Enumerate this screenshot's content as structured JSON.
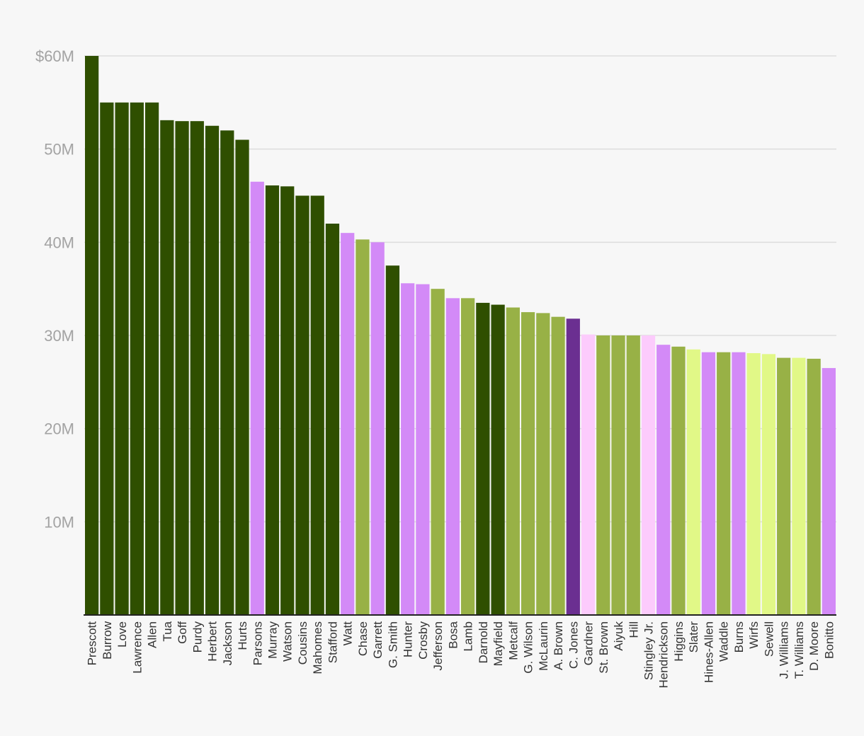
{
  "chart_data": {
    "type": "bar",
    "title": "",
    "xlabel": "",
    "ylabel": "",
    "ylim": [
      0,
      60
    ],
    "grid": true,
    "y_ticks": [
      {
        "value": 10,
        "label": "10M"
      },
      {
        "value": 20,
        "label": "20M"
      },
      {
        "value": 30,
        "label": "30M"
      },
      {
        "value": 40,
        "label": "40M"
      },
      {
        "value": 50,
        "label": "50M"
      },
      {
        "value": 60,
        "label": "$60M"
      }
    ],
    "colors": {
      "dark-green": "#2f4f00",
      "olive-green": "#98b146",
      "lime": "#e1f887",
      "lavender": "#d38af7",
      "pale-pink": "#fccbfc",
      "purple": "#6b2f91"
    },
    "categories": [
      "Prescott",
      "Burrow",
      "Love",
      "Lawrence",
      "Allen",
      "Tua",
      "Goff",
      "Purdy",
      "Herbert",
      "Jackson",
      "Hurts",
      "Parsons",
      "Murray",
      "Watson",
      "Cousins",
      "Mahomes",
      "Stafford",
      "Watt",
      "Chase",
      "Garrett",
      "G. Smith",
      "Hunter",
      "Crosby",
      "Jefferson",
      "Bosa",
      "Lamb",
      "Darnold",
      "Mayfield",
      "Metcalf",
      "G. Wilson",
      "McLaurin",
      "A. Brown",
      "C. Jones",
      "Gardner",
      "St. Brown",
      "Aiyuk",
      "Hill",
      "Stingley Jr.",
      "Hendrickson",
      "Higgins",
      "Slater",
      "Hines-Allen",
      "Waddle",
      "Burns",
      "Wirfs",
      "Sewell",
      "J. Williams",
      "T. Williams",
      "D. Moore",
      "Bonitto"
    ],
    "values": [
      60,
      55,
      55,
      55,
      55,
      53.1,
      53,
      53,
      52.5,
      52,
      51,
      46.5,
      46.1,
      46,
      45,
      45,
      42,
      41,
      40.3,
      40,
      37.5,
      35.6,
      35.5,
      35,
      34,
      34,
      33.5,
      33.3,
      33,
      32.5,
      32.4,
      32,
      31.8,
      30.1,
      30,
      30,
      30,
      30,
      29,
      28.8,
      28.5,
      28.2,
      28.2,
      28.2,
      28.1,
      28,
      27.6,
      27.6,
      27.5,
      26.5
    ],
    "bar_colors": [
      "dark-green",
      "dark-green",
      "dark-green",
      "dark-green",
      "dark-green",
      "dark-green",
      "dark-green",
      "dark-green",
      "dark-green",
      "dark-green",
      "dark-green",
      "lavender",
      "dark-green",
      "dark-green",
      "dark-green",
      "dark-green",
      "dark-green",
      "lavender",
      "olive-green",
      "lavender",
      "dark-green",
      "lavender",
      "lavender",
      "olive-green",
      "lavender",
      "olive-green",
      "dark-green",
      "dark-green",
      "olive-green",
      "olive-green",
      "olive-green",
      "olive-green",
      "purple",
      "pale-pink",
      "olive-green",
      "olive-green",
      "olive-green",
      "pale-pink",
      "lavender",
      "olive-green",
      "lime",
      "lavender",
      "olive-green",
      "lavender",
      "lime",
      "lime",
      "olive-green",
      "lime",
      "olive-green",
      "lavender"
    ]
  }
}
